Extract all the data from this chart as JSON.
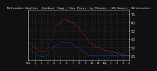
{
  "title": "Milwaukee Weather  Outdoor Temp / Dew Point  by Minute  (24 Hours) (Alternate)",
  "bg_color": "#111111",
  "plot_bg_color": "#111111",
  "grid_color": "#444444",
  "temp_color": "#ff2222",
  "dew_color": "#2244ff",
  "ylim": [
    15,
    75
  ],
  "yticks": [
    20,
    30,
    40,
    50,
    60,
    70
  ],
  "ytick_labels": [
    "20",
    "30",
    "40",
    "50",
    "60",
    "70"
  ],
  "ylabel_fontsize": 3.5,
  "title_fontsize": 3.2,
  "xlabel_fontsize": 2.8,
  "temp_data": [
    38,
    37,
    36,
    35,
    34,
    34,
    33,
    32,
    31,
    31,
    30,
    29,
    29,
    28,
    28,
    27,
    27,
    27,
    26,
    26,
    26,
    26,
    26,
    26,
    26,
    26,
    27,
    27,
    28,
    29,
    30,
    31,
    33,
    35,
    37,
    39,
    41,
    43,
    45,
    47,
    49,
    51,
    53,
    55,
    56,
    57,
    58,
    58,
    59,
    60,
    61,
    62,
    63,
    63,
    64,
    64,
    64,
    64,
    64,
    64,
    63,
    63,
    63,
    62,
    62,
    62,
    61,
    61,
    60,
    60,
    59,
    59,
    58,
    58,
    57,
    57,
    56,
    55,
    55,
    54,
    53,
    52,
    51,
    50,
    49,
    48,
    47,
    46,
    45,
    44,
    43,
    42,
    41,
    40,
    39,
    38,
    37,
    36,
    35,
    35,
    34,
    34,
    33,
    33,
    32,
    32,
    32,
    31,
    31,
    31,
    30,
    30,
    30,
    29,
    29,
    28,
    28,
    28,
    28,
    27,
    27,
    27,
    27,
    27,
    26,
    26,
    26,
    26,
    26,
    25,
    25,
    25,
    25,
    25,
    24,
    24,
    24,
    24,
    24,
    23,
    23,
    23,
    23,
    23,
    22,
    22,
    22,
    22,
    22,
    22,
    21,
    21,
    21,
    21,
    21,
    21,
    21,
    21,
    21,
    21
  ],
  "dew_data": [
    29,
    28,
    28,
    27,
    26,
    26,
    25,
    25,
    24,
    24,
    23,
    23,
    22,
    22,
    21,
    21,
    21,
    20,
    20,
    20,
    20,
    20,
    19,
    19,
    19,
    19,
    19,
    20,
    21,
    22,
    23,
    24,
    25,
    26,
    27,
    28,
    29,
    30,
    31,
    31,
    32,
    32,
    32,
    32,
    33,
    33,
    33,
    33,
    34,
    35,
    36,
    37,
    37,
    37,
    37,
    37,
    37,
    37,
    37,
    36,
    36,
    36,
    36,
    36,
    36,
    36,
    36,
    36,
    35,
    35,
    34,
    34,
    33,
    33,
    32,
    32,
    31,
    30,
    30,
    29,
    29,
    28,
    27,
    27,
    26,
    26,
    25,
    24,
    24,
    23,
    23,
    22,
    22,
    21,
    21,
    21,
    21,
    21,
    21,
    21,
    21,
    21,
    21,
    21,
    21,
    21,
    21,
    21,
    21,
    21,
    21,
    21,
    21,
    21,
    21,
    21,
    21,
    21,
    21,
    21,
    21,
    21,
    21,
    21,
    21,
    21,
    21,
    21,
    21,
    21,
    21,
    21,
    21,
    21,
    21,
    21,
    21,
    21,
    21,
    21,
    21,
    21,
    21,
    21,
    21,
    21,
    21,
    21,
    21,
    21,
    21,
    21,
    21,
    21,
    21,
    21,
    21,
    21,
    21,
    21
  ],
  "xtick_positions": [
    0,
    10,
    20,
    30,
    40,
    50,
    60,
    70,
    80,
    90,
    100,
    110,
    120,
    130,
    140,
    150,
    159
  ],
  "xtick_labels": [
    "12a",
    "1",
    "2",
    "3",
    "4",
    "5",
    "6",
    "7",
    "8",
    "9",
    "10",
    "11",
    "12p",
    "1",
    "2",
    "3",
    "4"
  ],
  "num_points": 160,
  "num_vgrid": 17,
  "text_color": "#dddddd"
}
